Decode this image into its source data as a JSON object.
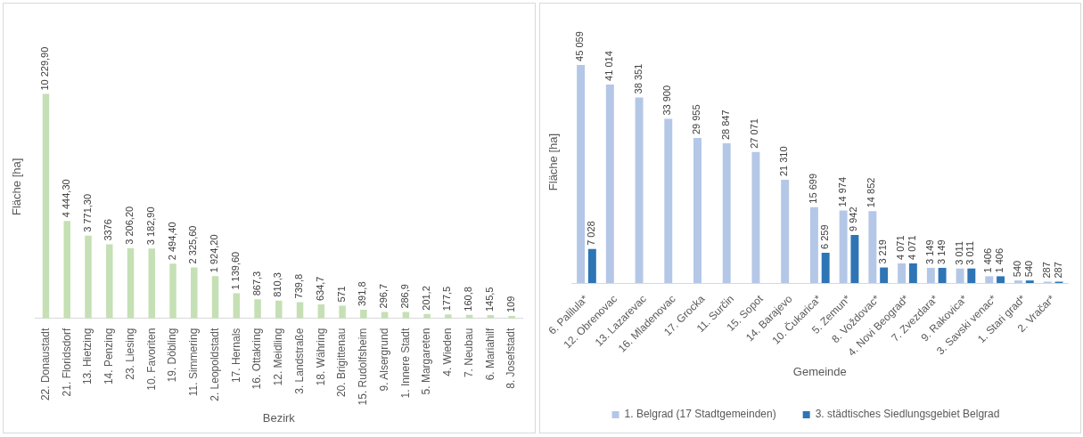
{
  "chart_data": [
    {
      "type": "bar",
      "xlabel": "Bezirk",
      "ylabel": "Fläche [ha]",
      "legend": false,
      "categories": [
        "22. Donaustadt",
        "21. Floridsdorf",
        "13. Hietzing",
        "14. Penzing",
        "23. Liesing",
        "10. Favoriten",
        "19. Döbling",
        "11. Simmering",
        "2. Leopoldstadt",
        "17. Hernals",
        "16. Ottakring",
        "12. Meidling",
        "3. Landstraße",
        "18. Währing",
        "20. Brigittenau",
        "15. Rudolfsheim",
        "9. Alsergrund",
        "1. Innere Stadt",
        "5. Margareten",
        "4. Wieden",
        "7. Neubau",
        "6. Mariahilf",
        "8. Josefstadt"
      ],
      "series": [
        {
          "color": "#c5e0b4",
          "values": [
            10229.9,
            4444.3,
            3771.3,
            3376,
            3206.2,
            3182.9,
            2494.4,
            2325.6,
            1924.2,
            1139.6,
            867.3,
            810.3,
            739.8,
            634.7,
            571,
            391.8,
            296.7,
            286.9,
            201.2,
            177.5,
            160.8,
            145.5,
            109
          ],
          "value_labels": [
            "10 229,90",
            "4 444,30",
            "3 771,30",
            "3376",
            "3 206,20",
            "3 182,90",
            "2 494,40",
            "2 325,60",
            "1 924,20",
            "1 139,60",
            "867,3",
            "810,3",
            "739,8",
            "634,7",
            "571",
            "391,8",
            "296,7",
            "286,9",
            "201,2",
            "177,5",
            "160,8",
            "145,5",
            "109"
          ]
        }
      ]
    },
    {
      "type": "bar",
      "xlabel": "Gemeinde",
      "ylabel": "Fläche [ha]",
      "legend": "bottom",
      "categories": [
        "6. Palilula*",
        "12. Obrenovac",
        "13. Lazarevac",
        "16. Mladenovac",
        "17. Grocka",
        "11. Surčin",
        "15. Sopot",
        "14. Barajevo",
        "10. Čukarica*",
        "5. Zemun*",
        "8. Voždovac*",
        "4. Novi Beograd*",
        "7. Zvezdara*",
        "9. Rakovica*",
        "3. Savski venac*",
        "1. Stari grad*",
        "2. Vračar*"
      ],
      "series": [
        {
          "name": "1. Belgrad (17 Stadtgemeinden)",
          "color": "#b4c7e7",
          "values": [
            45059,
            41014,
            38351,
            33900,
            29955,
            28847,
            27071,
            21310,
            15699,
            14974,
            14852,
            4071,
            3149,
            3011,
            1406,
            540,
            287
          ],
          "value_labels": [
            "45 059",
            "41 014",
            "38 351",
            "33 900",
            "29 955",
            "28 847",
            "27 071",
            "21 310",
            "15 699",
            "14 974",
            "14 852",
            "4 071",
            "3 149",
            "3 011",
            "1 406",
            "540",
            "287"
          ]
        },
        {
          "name": "3. städtisches Siedlungsgebiet Belgrad",
          "color": "#2e75b6",
          "values": [
            7028,
            null,
            null,
            null,
            null,
            null,
            null,
            null,
            6259,
            9942,
            3219,
            4071,
            3149,
            3011,
            1406,
            540,
            287
          ],
          "value_labels": [
            "7 028",
            null,
            null,
            null,
            null,
            null,
            null,
            null,
            "6 259",
            "9 942",
            "3 219",
            "4 071",
            "3 149",
            "3 011",
            "1 406",
            "540",
            "287"
          ]
        }
      ]
    }
  ]
}
